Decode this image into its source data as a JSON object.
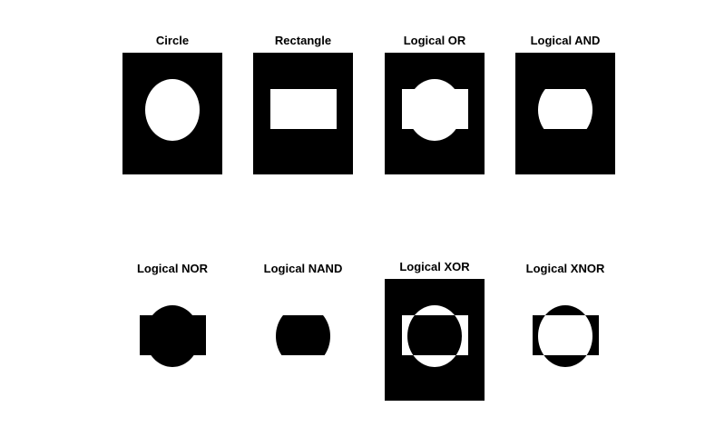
{
  "figure": {
    "background": "#ffffff",
    "colors": {
      "on": "#ffffff",
      "off": "#000000"
    },
    "panels": [
      {
        "title": "Circle",
        "op": "circle"
      },
      {
        "title": "Rectangle",
        "op": "rectangle"
      },
      {
        "title": "Logical OR",
        "op": "or"
      },
      {
        "title": "Logical AND",
        "op": "and"
      },
      {
        "title": "Logical NOR",
        "op": "nor"
      },
      {
        "title": "Logical NAND",
        "op": "nand"
      },
      {
        "title": "Logical XOR",
        "op": "xor"
      },
      {
        "title": "Logical XNOR",
        "op": "xnor"
      }
    ]
  }
}
